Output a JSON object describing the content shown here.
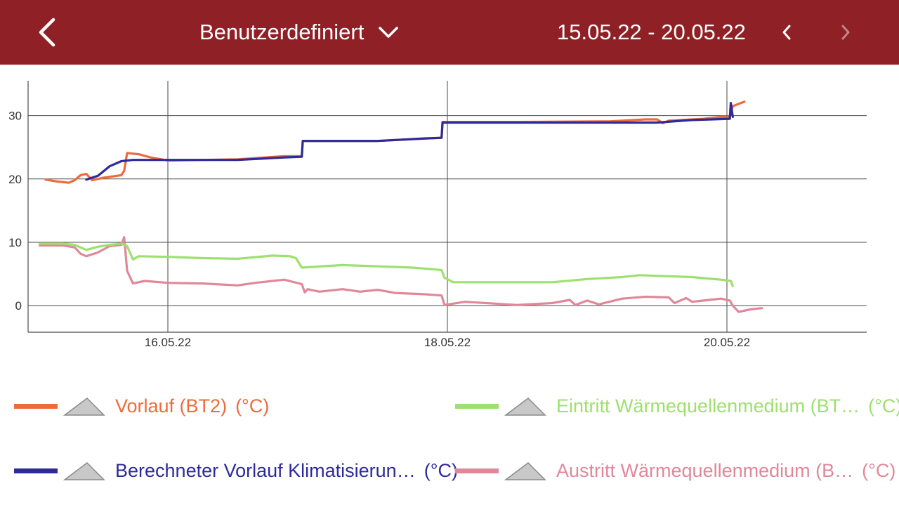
{
  "header": {
    "range_label": "Benutzerdefiniert",
    "date_range": "15.05.22 - 20.05.22",
    "bg_color": "#8e2026"
  },
  "icons": {
    "back": "chevron-left-icon",
    "dropdown": "chevron-down-icon",
    "prev": "chevron-left-icon",
    "next": "chevron-right-icon",
    "series_toggle": "mountain-icon"
  },
  "chart_data": {
    "type": "line",
    "xlabel": "",
    "ylabel": "",
    "x_range": [
      "15.05.22 00:00",
      "21.05.22 00:00"
    ],
    "x_ticks": [
      "16.05.22",
      "18.05.22",
      "20.05.22"
    ],
    "y_ticks": [
      "0",
      "10",
      "20",
      "30"
    ],
    "ylim": [
      -4.2,
      35.5
    ],
    "grid": true,
    "legend_position": "bottom",
    "series": [
      {
        "name": "Vorlauf (BT2)",
        "unit": "(°C)",
        "color": "#ed6b3a",
        "points": [
          [
            "15.05.22 03:00",
            19.9
          ],
          [
            "15.05.22 05:00",
            19.6
          ],
          [
            "15.05.22 07:00",
            19.4
          ],
          [
            "15.05.22 08:00",
            19.8
          ],
          [
            "15.05.22 09:00",
            20.6
          ],
          [
            "15.05.22 10:00",
            20.8
          ],
          [
            "15.05.22 11:00",
            19.8
          ],
          [
            "15.05.22 13:00",
            20.2
          ],
          [
            "15.05.22 16:00",
            20.6
          ],
          [
            "15.05.22 16:30",
            21.3
          ],
          [
            "15.05.22 17:00",
            24.1
          ],
          [
            "15.05.22 19:00",
            23.9
          ],
          [
            "15.05.22 21:00",
            23.4
          ],
          [
            "16.05.22 00:00",
            22.9
          ],
          [
            "16.05.22 12:00",
            23.1
          ],
          [
            "16.05.22 20:00",
            23.6
          ],
          [
            "16.05.22 23:00",
            23.6
          ],
          [
            "16.05.22 23:10",
            26.0
          ],
          [
            "17.05.22 12:00",
            26.0
          ],
          [
            "17.05.22 23:00",
            26.5
          ],
          [
            "17.05.22 23:10",
            29.0
          ],
          [
            "18.05.22 12:00",
            29.0
          ],
          [
            "19.05.22 04:00",
            29.1
          ],
          [
            "19.05.22 10:00",
            29.4
          ],
          [
            "19.05.22 12:00",
            29.4
          ],
          [
            "19.05.22 13:00",
            28.8
          ],
          [
            "19.05.22 14:00",
            29.2
          ],
          [
            "19.05.22 20:00",
            29.5
          ],
          [
            "19.05.22 23:00",
            29.8
          ],
          [
            "20.05.22 00:30",
            29.8
          ],
          [
            "20.05.22 01:00",
            31.5
          ],
          [
            "20.05.22 03:00",
            32.2
          ]
        ]
      },
      {
        "name": "Berechneter Vorlauf Klimatisierun…",
        "unit": "(°C)",
        "color": "#2e2a9a",
        "points": [
          [
            "15.05.22 10:00",
            19.9
          ],
          [
            "15.05.22 12:00",
            20.5
          ],
          [
            "15.05.22 14:00",
            22.0
          ],
          [
            "15.05.22 16:00",
            22.8
          ],
          [
            "15.05.22 18:00",
            23.0
          ],
          [
            "16.05.22 00:00",
            23.0
          ],
          [
            "16.05.22 12:00",
            23.0
          ],
          [
            "16.05.22 20:00",
            23.4
          ],
          [
            "16.05.22 23:00",
            23.5
          ],
          [
            "16.05.22 23:10",
            26.0
          ],
          [
            "17.05.22 12:00",
            26.0
          ],
          [
            "17.05.22 20:00",
            26.4
          ],
          [
            "17.05.22 23:00",
            26.5
          ],
          [
            "17.05.22 23:10",
            28.9
          ],
          [
            "18.05.22 12:00",
            28.9
          ],
          [
            "19.05.22 06:00",
            28.9
          ],
          [
            "19.05.22 12:00",
            28.9
          ],
          [
            "19.05.22 18:00",
            29.3
          ],
          [
            "20.05.22 00:30",
            29.5
          ],
          [
            "20.05.22 00:40",
            32.0
          ],
          [
            "20.05.22 01:00",
            29.8
          ]
        ]
      },
      {
        "name": "Eintritt Wärmequellenmedium (BT…",
        "unit": "(°C)",
        "color": "#9ee06f",
        "points": [
          [
            "15.05.22 02:00",
            9.8
          ],
          [
            "15.05.22 06:00",
            9.8
          ],
          [
            "15.05.22 08:00",
            9.6
          ],
          [
            "15.05.22 10:00",
            8.8
          ],
          [
            "15.05.22 12:00",
            9.3
          ],
          [
            "15.05.22 14:00",
            9.6
          ],
          [
            "15.05.22 16:00",
            9.8
          ],
          [
            "15.05.22 17:00",
            9.4
          ],
          [
            "15.05.22 18:00",
            7.3
          ],
          [
            "15.05.22 19:00",
            7.8
          ],
          [
            "16.05.22 00:00",
            7.7
          ],
          [
            "16.05.22 06:00",
            7.5
          ],
          [
            "16.05.22 12:00",
            7.4
          ],
          [
            "16.05.22 18:00",
            7.9
          ],
          [
            "16.05.22 21:00",
            7.8
          ],
          [
            "16.05.22 22:00",
            7.5
          ],
          [
            "16.05.22 23:00",
            6.0
          ],
          [
            "17.05.22 06:00",
            6.4
          ],
          [
            "17.05.22 12:00",
            6.2
          ],
          [
            "17.05.22 18:00",
            6.0
          ],
          [
            "17.05.22 22:00",
            5.7
          ],
          [
            "17.05.22 23:00",
            5.6
          ],
          [
            "17.05.22 23:30",
            4.4
          ],
          [
            "18.05.22 01:00",
            3.7
          ],
          [
            "18.05.22 12:00",
            3.7
          ],
          [
            "18.05.22 18:00",
            3.7
          ],
          [
            "19.05.22 00:00",
            4.2
          ],
          [
            "19.05.22 06:00",
            4.5
          ],
          [
            "19.05.22 09:00",
            4.8
          ],
          [
            "19.05.22 12:00",
            4.7
          ],
          [
            "19.05.22 18:00",
            4.5
          ],
          [
            "19.05.22 23:00",
            4.1
          ],
          [
            "20.05.22 00:40",
            3.9
          ],
          [
            "20.05.22 01:00",
            3.1
          ]
        ]
      },
      {
        "name": "Austritt Wärmequellenmedium (B…",
        "unit": "(°C)",
        "color": "#e0889a",
        "points": [
          [
            "15.05.22 02:00",
            9.5
          ],
          [
            "15.05.22 06:00",
            9.5
          ],
          [
            "15.05.22 08:00",
            9.2
          ],
          [
            "15.05.22 09:00",
            8.2
          ],
          [
            "15.05.22 10:00",
            7.8
          ],
          [
            "15.05.22 12:00",
            8.4
          ],
          [
            "15.05.22 14:00",
            9.4
          ],
          [
            "15.05.22 16:00",
            9.6
          ],
          [
            "15.05.22 16:30",
            10.8
          ],
          [
            "15.05.22 17:00",
            5.5
          ],
          [
            "15.05.22 18:00",
            3.5
          ],
          [
            "15.05.22 20:00",
            3.9
          ],
          [
            "16.05.22 00:00",
            3.6
          ],
          [
            "16.05.22 06:00",
            3.5
          ],
          [
            "16.05.22 12:00",
            3.2
          ],
          [
            "16.05.22 15:00",
            3.6
          ],
          [
            "16.05.22 20:00",
            4.1
          ],
          [
            "16.05.22 23:00",
            3.4
          ],
          [
            "16.05.22 23:30",
            2.1
          ],
          [
            "17.05.22 00:00",
            2.6
          ],
          [
            "17.05.22 02:00",
            2.2
          ],
          [
            "17.05.22 06:00",
            2.6
          ],
          [
            "17.05.22 09:00",
            2.2
          ],
          [
            "17.05.22 12:00",
            2.5
          ],
          [
            "17.05.22 15:00",
            2.0
          ],
          [
            "17.05.22 20:00",
            1.8
          ],
          [
            "17.05.22 23:00",
            1.6
          ],
          [
            "17.05.22 23:30",
            0.1
          ],
          [
            "18.05.22 03:00",
            0.6
          ],
          [
            "18.05.22 12:00",
            0.1
          ],
          [
            "18.05.22 18:00",
            0.4
          ],
          [
            "18.05.22 21:00",
            0.9
          ],
          [
            "18.05.22 22:00",
            0.1
          ],
          [
            "19.05.22 00:00",
            0.8
          ],
          [
            "19.05.22 02:00",
            0.2
          ],
          [
            "19.05.22 06:00",
            1.1
          ],
          [
            "19.05.22 10:00",
            1.4
          ],
          [
            "19.05.22 14:00",
            1.3
          ],
          [
            "19.05.22 15:00",
            0.4
          ],
          [
            "19.05.22 17:00",
            1.2
          ],
          [
            "19.05.22 18:00",
            0.6
          ],
          [
            "19.05.22 20:00",
            0.8
          ],
          [
            "19.05.22 23:00",
            1.1
          ],
          [
            "20.05.22 00:30",
            0.8
          ],
          [
            "20.05.22 01:00",
            0.0
          ],
          [
            "20.05.22 02:00",
            -1.0
          ],
          [
            "20.05.22 04:00",
            -0.6
          ],
          [
            "20.05.22 06:00",
            -0.4
          ]
        ]
      }
    ]
  },
  "legend": {
    "toggle_color": "#c8c8c8"
  }
}
